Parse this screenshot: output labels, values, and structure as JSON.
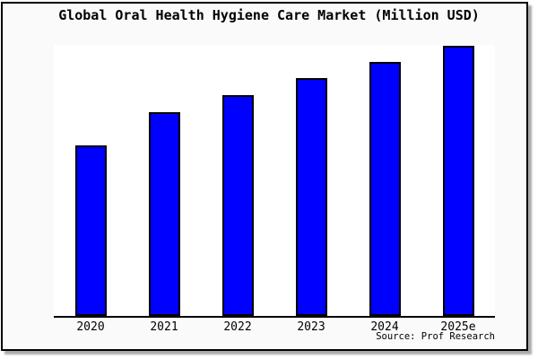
{
  "title": "Global Oral Health Hygiene Care Market (Million USD)",
  "source": "Source: Prof Research",
  "colors": {
    "bar_fill": "#0000ff",
    "bar_border": "#000000",
    "panel_background": "#fafafa",
    "plot_background": "#ffffff",
    "frame_border": "#000000",
    "shadow": "#aaaaaa",
    "text": "#000000"
  },
  "chart_data": {
    "type": "bar",
    "title": "Global Oral Health Hygiene Care Market (Million USD)",
    "categories": [
      "2020",
      "2021",
      "2022",
      "2023",
      "2024",
      "2025e"
    ],
    "values": [
      190,
      227,
      246,
      265,
      283,
      301
    ],
    "values_unit": "relative bar height in px (no numeric y-axis shown in chart)",
    "xlabel": "",
    "ylabel": "",
    "ylim": [
      0,
      302
    ],
    "y_axis_visible": false,
    "grid": false,
    "legend": false,
    "source_annotation": "Source: Prof Research"
  }
}
